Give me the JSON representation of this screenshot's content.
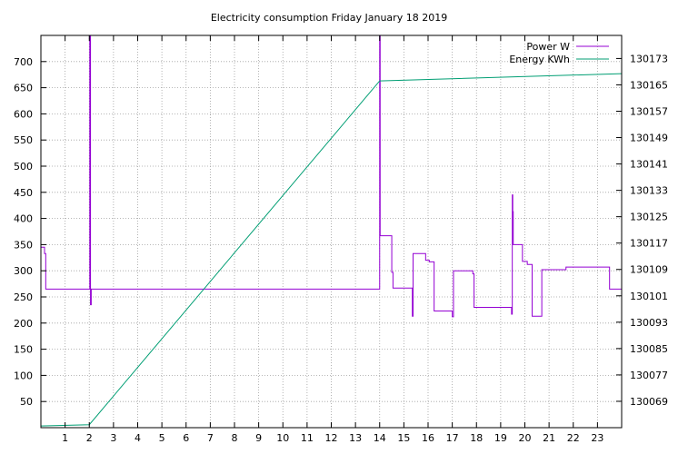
{
  "chart_data": {
    "type": "line",
    "title": "Electricity consumption Friday January 18 2019",
    "xlabel": "",
    "ylabel": "",
    "y2label": "",
    "xlim": [
      0,
      24
    ],
    "ylim": [
      0,
      750
    ],
    "y2lim": [
      130061,
      130180
    ],
    "x_ticks": [
      1,
      2,
      3,
      4,
      5,
      6,
      7,
      8,
      9,
      10,
      11,
      12,
      13,
      14,
      15,
      16,
      17,
      18,
      19,
      20,
      21,
      22,
      23
    ],
    "y_ticks": [
      50,
      100,
      150,
      200,
      250,
      300,
      350,
      400,
      450,
      500,
      550,
      600,
      650,
      700
    ],
    "y2_ticks": [
      130069,
      130077,
      130085,
      130093,
      130101,
      130109,
      130117,
      130125,
      130133,
      130141,
      130149,
      130157,
      130165,
      130173
    ],
    "grid": true,
    "legend_position": "top-right",
    "series": [
      {
        "name": "Power W",
        "axis": "y",
        "color": "#9400d3",
        "step": true,
        "x": [
          0,
          0.15,
          0.2,
          2.0,
          2.02,
          2.05,
          2.08,
          2.1,
          14.0,
          14.02,
          14.05,
          14.5,
          14.55,
          14.6,
          15.35,
          15.38,
          15.45,
          15.9,
          16.05,
          16.25,
          17.0,
          17.05,
          17.1,
          17.85,
          17.9,
          19.45,
          19.48,
          19.5,
          19.52,
          19.6,
          19.9,
          20.1,
          20.3,
          20.7,
          21.7,
          23.5,
          24.0
        ],
        "y": [
          345,
          333,
          265,
          265,
          750,
          235,
          265,
          265,
          750,
          367,
          367,
          297,
          267,
          267,
          213,
          333,
          333,
          320,
          317,
          223,
          212,
          300,
          300,
          294,
          230,
          217,
          445,
          413,
          350,
          350,
          318,
          312,
          213,
          302,
          307,
          265,
          265
        ]
      },
      {
        "name": "Energy KWh",
        "axis": "y2",
        "color": "#009e73",
        "step": false,
        "x": [
          0,
          2.0,
          14.0,
          24.0
        ],
        "y": [
          130061.5,
          130061.9,
          130166.2,
          130168.4
        ]
      }
    ]
  }
}
